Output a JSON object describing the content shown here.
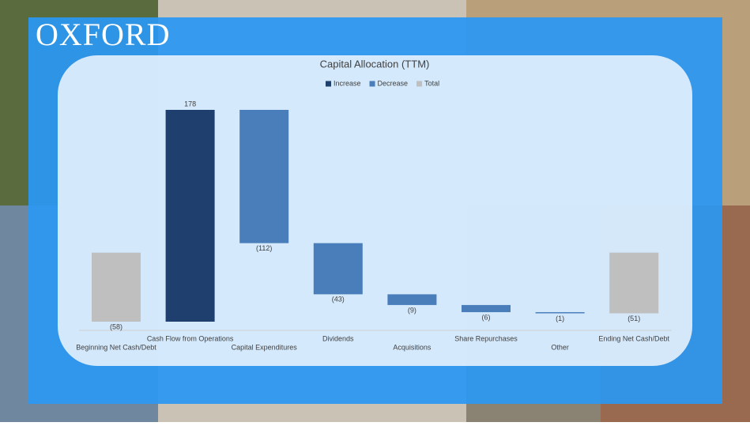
{
  "brand": "OXFORD",
  "chart_data": {
    "type": "waterfall",
    "title": "Capital Allocation (TTM)",
    "categories": [
      "Beginning Net Cash/Debt",
      "Cash Flow from Operations",
      "Capital Expenditures",
      "Dividends",
      "Acquisitions",
      "Share Repurchases",
      "Other",
      "Ending Net Cash/Debt"
    ],
    "values": [
      -58,
      178,
      -112,
      -43,
      -9,
      -6,
      -1,
      -51
    ],
    "value_labels": [
      "(58)",
      "178",
      "(112)",
      "(43)",
      "(9)",
      "(6)",
      "(1)",
      "(51)"
    ],
    "is_total": [
      true,
      false,
      false,
      false,
      false,
      false,
      false,
      true
    ],
    "series": [
      {
        "name": "Increase",
        "color": "#1f3f6e"
      },
      {
        "name": "Decrease",
        "color": "#4a7ebb"
      },
      {
        "name": "Total",
        "color": "#bfbfbf"
      }
    ],
    "legend": "top"
  }
}
